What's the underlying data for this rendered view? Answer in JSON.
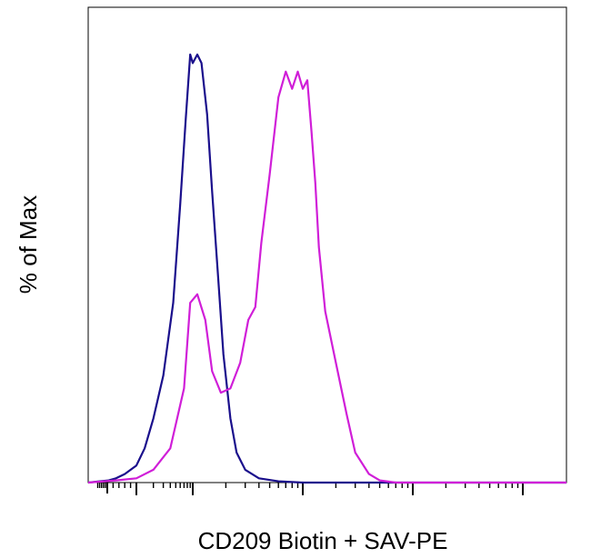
{
  "chart_data": {
    "type": "line",
    "title": "",
    "xlabel": "CD209 Biotin + SAV-PE",
    "ylabel": "% of Max",
    "x_scale": "log",
    "xlim": [
      -200,
      100000
    ],
    "ylim": [
      0,
      105
    ],
    "grid": false,
    "legend": "none",
    "tick_labels": {
      "x": [],
      "y": []
    },
    "series": [
      {
        "color": "#1a0f8c",
        "x": [
          -200,
          5,
          30,
          60,
          100,
          140,
          200,
          300,
          450,
          600,
          750,
          900,
          1000,
          1100,
          1200,
          1350,
          1500,
          1700,
          1900,
          2200,
          2500,
          3000,
          4000,
          6000,
          10000,
          100000
        ],
        "values": [
          0,
          0.5,
          1,
          2,
          4,
          8,
          15,
          25,
          42,
          65,
          85,
          100,
          98,
          100,
          98,
          86,
          68,
          48,
          30,
          15,
          7,
          3,
          1,
          0.3,
          0,
          0
        ]
      },
      {
        "color": "#d01ed8",
        "x": [
          -200,
          30,
          100,
          200,
          400,
          700,
          900,
          1100,
          1300,
          1500,
          1800,
          2200,
          2700,
          3200,
          3700,
          4200,
          5000,
          6000,
          7000,
          8000,
          9000,
          10000,
          11000,
          12000,
          13000,
          14000,
          16000,
          20000,
          25000,
          30000,
          40000,
          50000,
          70000,
          100000
        ],
        "values": [
          0,
          0.5,
          1,
          3,
          8,
          22,
          42,
          44,
          38,
          26,
          21,
          22,
          28,
          38,
          41,
          56,
          72,
          90,
          96,
          92,
          96,
          92,
          94,
          82,
          70,
          55,
          40,
          28,
          16,
          7,
          2,
          0.5,
          0,
          0
        ]
      }
    ]
  }
}
